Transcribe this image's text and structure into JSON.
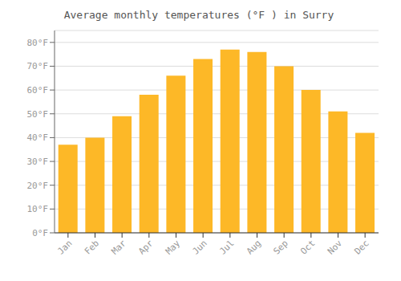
{
  "chart_data": {
    "type": "bar",
    "title": "Average monthly temperatures (°F ) in Surry",
    "categories": [
      "Jan",
      "Feb",
      "Mar",
      "Apr",
      "May",
      "Jun",
      "Jul",
      "Aug",
      "Sep",
      "Oct",
      "Nov",
      "Dec"
    ],
    "values": [
      37,
      40,
      49,
      58,
      66,
      73,
      77,
      76,
      70,
      60,
      51,
      42
    ],
    "color": "#FDB827",
    "ylim": [
      0,
      85
    ],
    "yticks": [
      {
        "value": 0,
        "label": "0°F"
      },
      {
        "value": 10,
        "label": "10°F"
      },
      {
        "value": 20,
        "label": "20°F"
      },
      {
        "value": 30,
        "label": "30°F"
      },
      {
        "value": 40,
        "label": "40°F"
      },
      {
        "value": 50,
        "label": "50°F"
      },
      {
        "value": 60,
        "label": "60°F"
      },
      {
        "value": 70,
        "label": "70°F"
      },
      {
        "value": 80,
        "label": "80°F"
      }
    ],
    "grid": true
  }
}
